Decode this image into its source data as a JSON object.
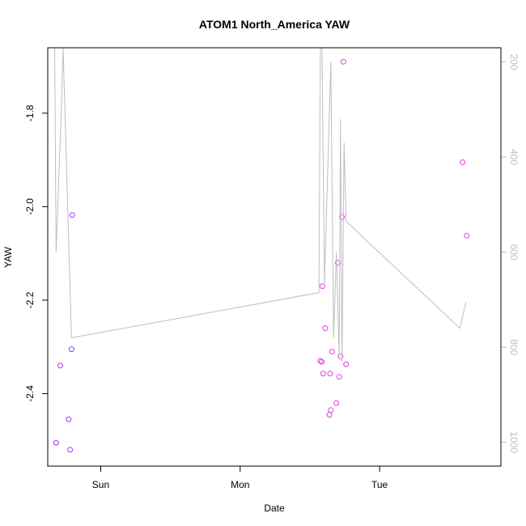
{
  "chart_data": {
    "type": "scatter",
    "title": "ATOM1 North_America YAW",
    "xlabel": "Date",
    "ylabel": "YAW",
    "x_ticks": [
      {
        "label": "Sun",
        "t": 0.38
      },
      {
        "label": "Mon",
        "t": 1.38
      },
      {
        "label": "Tue",
        "t": 2.38
      }
    ],
    "xlim": [
      0,
      3.25
    ],
    "ylim": [
      -2.555,
      -1.66
    ],
    "y_ticks": [
      -1.8,
      -2.0,
      -2.2,
      -2.4
    ],
    "y2lim": [
      1050,
      170
    ],
    "y2_ticks": [
      200,
      400,
      600,
      800,
      1000
    ],
    "grid": false,
    "series": [
      {
        "kind": "points",
        "points": [
          {
            "x": 0.06,
            "y": -2.505,
            "color": "#9b30ff"
          },
          {
            "x": 0.09,
            "y": -2.34,
            "color": "#9b30ff"
          },
          {
            "x": 0.15,
            "y": -2.455,
            "color": "#9b30ff"
          },
          {
            "x": 0.16,
            "y": -2.52,
            "color": "#9b30ff"
          },
          {
            "x": 0.17,
            "y": -2.305,
            "color": "#9b30ff"
          },
          {
            "x": 0.175,
            "y": -2.018,
            "color": "#9b30ff"
          },
          {
            "x": 1.955,
            "y": -2.33,
            "color": "#e040e0"
          },
          {
            "x": 1.965,
            "y": -2.332,
            "color": "#e040e0"
          },
          {
            "x": 1.97,
            "y": -2.17,
            "color": "#e040e0"
          },
          {
            "x": 1.975,
            "y": -2.357,
            "color": "#e040e0"
          },
          {
            "x": 1.99,
            "y": -2.26,
            "color": "#e040e0"
          },
          {
            "x": 2.02,
            "y": -2.445,
            "color": "#e040e0"
          },
          {
            "x": 2.025,
            "y": -2.357,
            "color": "#e040e0"
          },
          {
            "x": 2.03,
            "y": -2.435,
            "color": "#e040e0"
          },
          {
            "x": 2.04,
            "y": -2.31,
            "color": "#e040e0"
          },
          {
            "x": 2.07,
            "y": -2.42,
            "color": "#e040e0"
          },
          {
            "x": 2.08,
            "y": -2.12,
            "color": "#e040e0"
          },
          {
            "x": 2.09,
            "y": -2.364,
            "color": "#e040e0"
          },
          {
            "x": 2.1,
            "y": -2.32,
            "color": "#e040e0"
          },
          {
            "x": 2.11,
            "y": -2.022,
            "color": "#e040e0"
          },
          {
            "x": 2.12,
            "y": -1.69,
            "color": "#e040e0"
          },
          {
            "x": 2.14,
            "y": -2.337,
            "color": "#e040e0"
          },
          {
            "x": 2.975,
            "y": -1.905,
            "color": "#e040e0"
          },
          {
            "x": 3.005,
            "y": -2.062,
            "color": "#e040e0"
          }
        ]
      },
      {
        "kind": "line",
        "axis": "right",
        "color": "#bebebe",
        "points": [
          {
            "x": 0.05,
            "y": 170
          },
          {
            "x": 0.06,
            "y": 600
          },
          {
            "x": 0.1,
            "y": 280
          },
          {
            "x": 0.11,
            "y": 170
          },
          {
            "x": 0.17,
            "y": 780
          },
          {
            "x": 1.945,
            "y": 685
          },
          {
            "x": 1.955,
            "y": 170
          },
          {
            "x": 1.965,
            "y": 120
          },
          {
            "x": 1.975,
            "y": 400
          },
          {
            "x": 1.985,
            "y": 665
          },
          {
            "x": 2.03,
            "y": 200
          },
          {
            "x": 2.05,
            "y": 780
          },
          {
            "x": 2.07,
            "y": 600
          },
          {
            "x": 2.09,
            "y": 820
          },
          {
            "x": 2.1,
            "y": 320
          },
          {
            "x": 2.11,
            "y": 830
          },
          {
            "x": 2.125,
            "y": 370
          },
          {
            "x": 2.14,
            "y": 535
          },
          {
            "x": 2.955,
            "y": 760
          },
          {
            "x": 3.0,
            "y": 705
          }
        ]
      }
    ]
  }
}
